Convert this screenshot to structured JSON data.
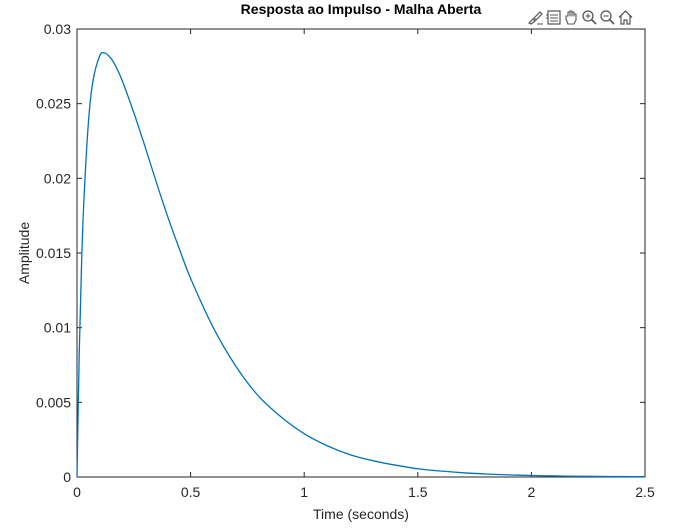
{
  "toolbar": {
    "icons": [
      "brush-icon",
      "legend-icon",
      "pan-hand-icon",
      "zoom-in-icon",
      "zoom-out-icon",
      "home-icon"
    ]
  },
  "colors": {
    "line": "#0072BD",
    "axis": "#262626",
    "background": "#ffffff"
  },
  "chart_data": {
    "type": "line",
    "title": "Resposta ao Impulso - Malha Aberta",
    "xlabel": "Time (seconds)",
    "ylabel": "Amplitude",
    "xlim": [
      0,
      2.5
    ],
    "ylim": [
      0,
      0.03
    ],
    "grid": false,
    "legend": "none",
    "xticks": [
      0,
      0.5,
      1,
      1.5,
      2,
      2.5
    ],
    "xtick_labels": [
      "0",
      "0.5",
      "1",
      "1.5",
      "2",
      "2.5"
    ],
    "yticks": [
      0,
      0.005,
      0.01,
      0.015,
      0.02,
      0.025,
      0.03
    ],
    "ytick_labels": [
      "0",
      "0.005",
      "0.01",
      "0.015",
      "0.02",
      "0.025",
      "0.03"
    ],
    "series": [
      {
        "x": [
          0,
          0.01,
          0.02,
          0.03,
          0.05,
          0.07,
          0.1,
          0.12,
          0.14,
          0.16,
          0.18,
          0.2,
          0.25,
          0.3,
          0.35,
          0.4,
          0.45,
          0.5,
          0.6,
          0.7,
          0.8,
          0.9,
          1.0,
          1.1,
          1.2,
          1.3,
          1.4,
          1.5,
          1.6,
          1.7,
          1.8,
          1.9,
          2.0,
          2.1,
          2.2,
          2.3,
          2.4,
          2.5
        ],
        "y": [
          0,
          0.0084,
          0.0142,
          0.0184,
          0.0237,
          0.0265,
          0.0282,
          0.0284,
          0.0282,
          0.0278,
          0.0272,
          0.0265,
          0.0244,
          0.0221,
          0.0197,
          0.0174,
          0.0153,
          0.0133,
          0.01,
          0.0074,
          0.0054,
          0.004,
          0.0029,
          0.0021,
          0.0015,
          0.0011,
          0.0008,
          0.00055,
          0.0004,
          0.00028,
          0.0002,
          0.00014,
          0.0001,
          7e-05,
          5e-05,
          4e-05,
          3e-05,
          2e-05
        ]
      }
    ]
  }
}
